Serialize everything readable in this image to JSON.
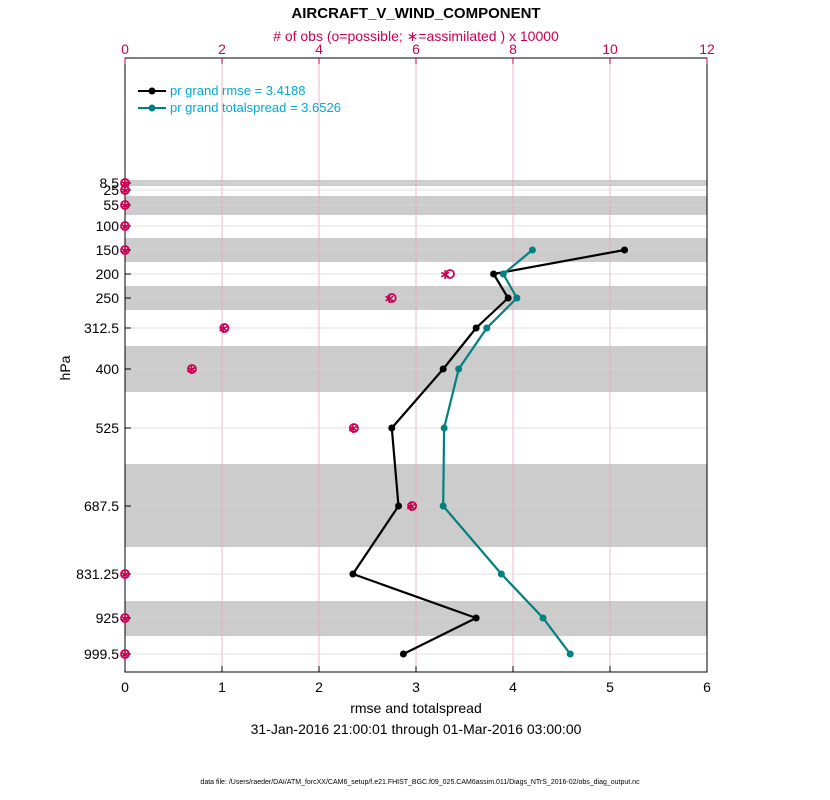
{
  "chart_data": {
    "type": "line",
    "title": "AIRCRAFT_V_WIND_COMPONENT",
    "top_axis_label": "# of obs (o=possible; ∗=assimilated ) x 10000",
    "xlabel": "rmse and totalspread",
    "ylabel": "hPa",
    "date_range": "31-Jan-2016 21:00:01 through 01-Mar-2016 03:00:00",
    "footnote": "data file: /Users/raeder/DAI/ATM_forcXX/CAM6_setup/f.e21.FHIST_BGC.f09_025.CAM6assim.011/Diags_NTrS_2016-02/obs_diag_output.nc",
    "xlim": [
      0,
      6
    ],
    "top_xlim": [
      0,
      12
    ],
    "x_ticks": [
      "0",
      "1",
      "2",
      "3",
      "4",
      "5",
      "6"
    ],
    "top_ticks": [
      "0",
      "2",
      "4",
      "6",
      "8",
      "10",
      "12"
    ],
    "levels": [
      "8.5",
      "25",
      "55",
      "100",
      "150",
      "200",
      "250",
      "312.5",
      "400",
      "525",
      "687.5",
      "831.25",
      "925",
      "999.5"
    ],
    "shaded_bands": [
      [
        "8.5",
        "25"
      ],
      [
        "55",
        "55"
      ],
      [
        "150",
        "150"
      ],
      [
        "250",
        "250"
      ],
      [
        "400",
        "400"
      ],
      [
        "687.5",
        "687.5"
      ],
      [
        "925",
        "925"
      ]
    ],
    "series": [
      {
        "name": "pr grand rmse = 3.4188",
        "color": "#000000",
        "points": [
          {
            "level": "150",
            "value": 5.15
          },
          {
            "level": "200",
            "value": 3.8
          },
          {
            "level": "250",
            "value": 3.95
          },
          {
            "level": "312.5",
            "value": 3.62
          },
          {
            "level": "400",
            "value": 3.28
          },
          {
            "level": "525",
            "value": 2.75
          },
          {
            "level": "687.5",
            "value": 2.82
          },
          {
            "level": "831.25",
            "value": 2.35
          },
          {
            "level": "925",
            "value": 3.62
          },
          {
            "level": "999.5",
            "value": 2.87
          }
        ]
      },
      {
        "name": "pr grand totalspread = 3.6526",
        "color": "#00807f",
        "points": [
          {
            "level": "150",
            "value": 4.2
          },
          {
            "level": "200",
            "value": 3.9
          },
          {
            "level": "250",
            "value": 4.04
          },
          {
            "level": "312.5",
            "value": 3.73
          },
          {
            "level": "400",
            "value": 3.44
          },
          {
            "level": "525",
            "value": 3.29
          },
          {
            "level": "687.5",
            "value": 3.28
          },
          {
            "level": "831.25",
            "value": 3.88
          },
          {
            "level": "925",
            "value": 4.31
          },
          {
            "level": "999.5",
            "value": 4.59
          }
        ]
      }
    ],
    "obs_counts": [
      {
        "level": "8.5",
        "possible": 0,
        "assimilated": 0
      },
      {
        "level": "25",
        "possible": 0,
        "assimilated": 0
      },
      {
        "level": "55",
        "possible": 0,
        "assimilated": 0
      },
      {
        "level": "100",
        "possible": 0,
        "assimilated": 0
      },
      {
        "level": "150",
        "possible": 0,
        "assimilated": 0
      },
      {
        "level": "200",
        "possible": 6.7,
        "assimilated": 6.6
      },
      {
        "level": "250",
        "possible": 5.5,
        "assimilated": 5.45
      },
      {
        "level": "312.5",
        "possible": 2.05,
        "assimilated": 2.03
      },
      {
        "level": "400",
        "possible": 1.38,
        "assimilated": 1.37
      },
      {
        "level": "525",
        "possible": 4.72,
        "assimilated": 4.7
      },
      {
        "level": "687.5",
        "possible": 5.92,
        "assimilated": 5.9
      },
      {
        "level": "831.25",
        "possible": 0,
        "assimilated": 0
      },
      {
        "level": "925",
        "possible": 0,
        "assimilated": 0
      },
      {
        "level": "999.5",
        "possible": 0,
        "assimilated": 0
      }
    ],
    "obs_color": "#cc0055"
  }
}
